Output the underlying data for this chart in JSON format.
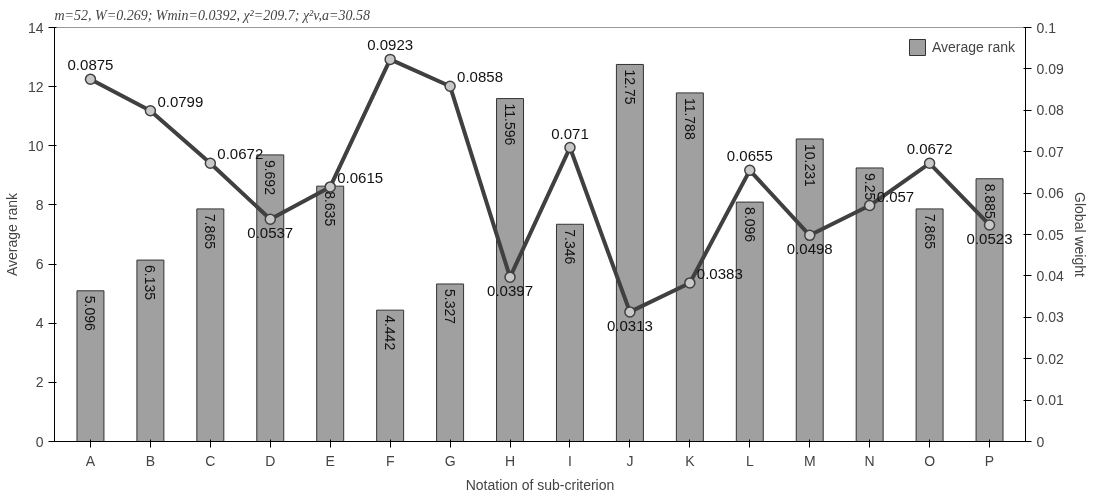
{
  "chart_data": {
    "type": "bar",
    "title": "m=52, W=0.269; Wmin=0.0392, χ²=209.7; χ²v,a=30.58",
    "xlabel": "Notation of sub-criterion",
    "ylabel": "Average rank",
    "y2label": "Global weight",
    "categories": [
      "A",
      "B",
      "C",
      "D",
      "E",
      "F",
      "G",
      "H",
      "I",
      "J",
      "K",
      "L",
      "M",
      "N",
      "O",
      "P"
    ],
    "series": [
      {
        "name": "Average rank",
        "color": "#a0a0a0",
        "values": [
          5.096,
          6.135,
          7.865,
          9.692,
          8.635,
          4.442,
          5.327,
          11.596,
          7.346,
          12.75,
          11.788,
          8.096,
          10.231,
          9.25,
          7.865,
          8.885
        ]
      },
      {
        "type": "line",
        "axis": "y2",
        "color": "#404040",
        "marker": "circle",
        "values": [
          0.0875,
          0.0799,
          0.0672,
          0.0537,
          0.0615,
          0.0923,
          0.0858,
          0.0397,
          0.071,
          0.0313,
          0.0383,
          0.0655,
          0.0498,
          0.057,
          0.0672,
          0.0523
        ]
      }
    ],
    "data_labels": true,
    "ylim": [
      0,
      14
    ],
    "yticks": [
      0,
      2,
      4,
      6,
      8,
      10,
      12,
      14
    ],
    "y2lim": [
      0,
      0.1
    ],
    "y2ticks": [
      0,
      0.01,
      0.02,
      0.03,
      0.04,
      0.05,
      0.06,
      0.07,
      0.08,
      0.09,
      0.1
    ],
    "grid": false,
    "legend": "top right"
  }
}
